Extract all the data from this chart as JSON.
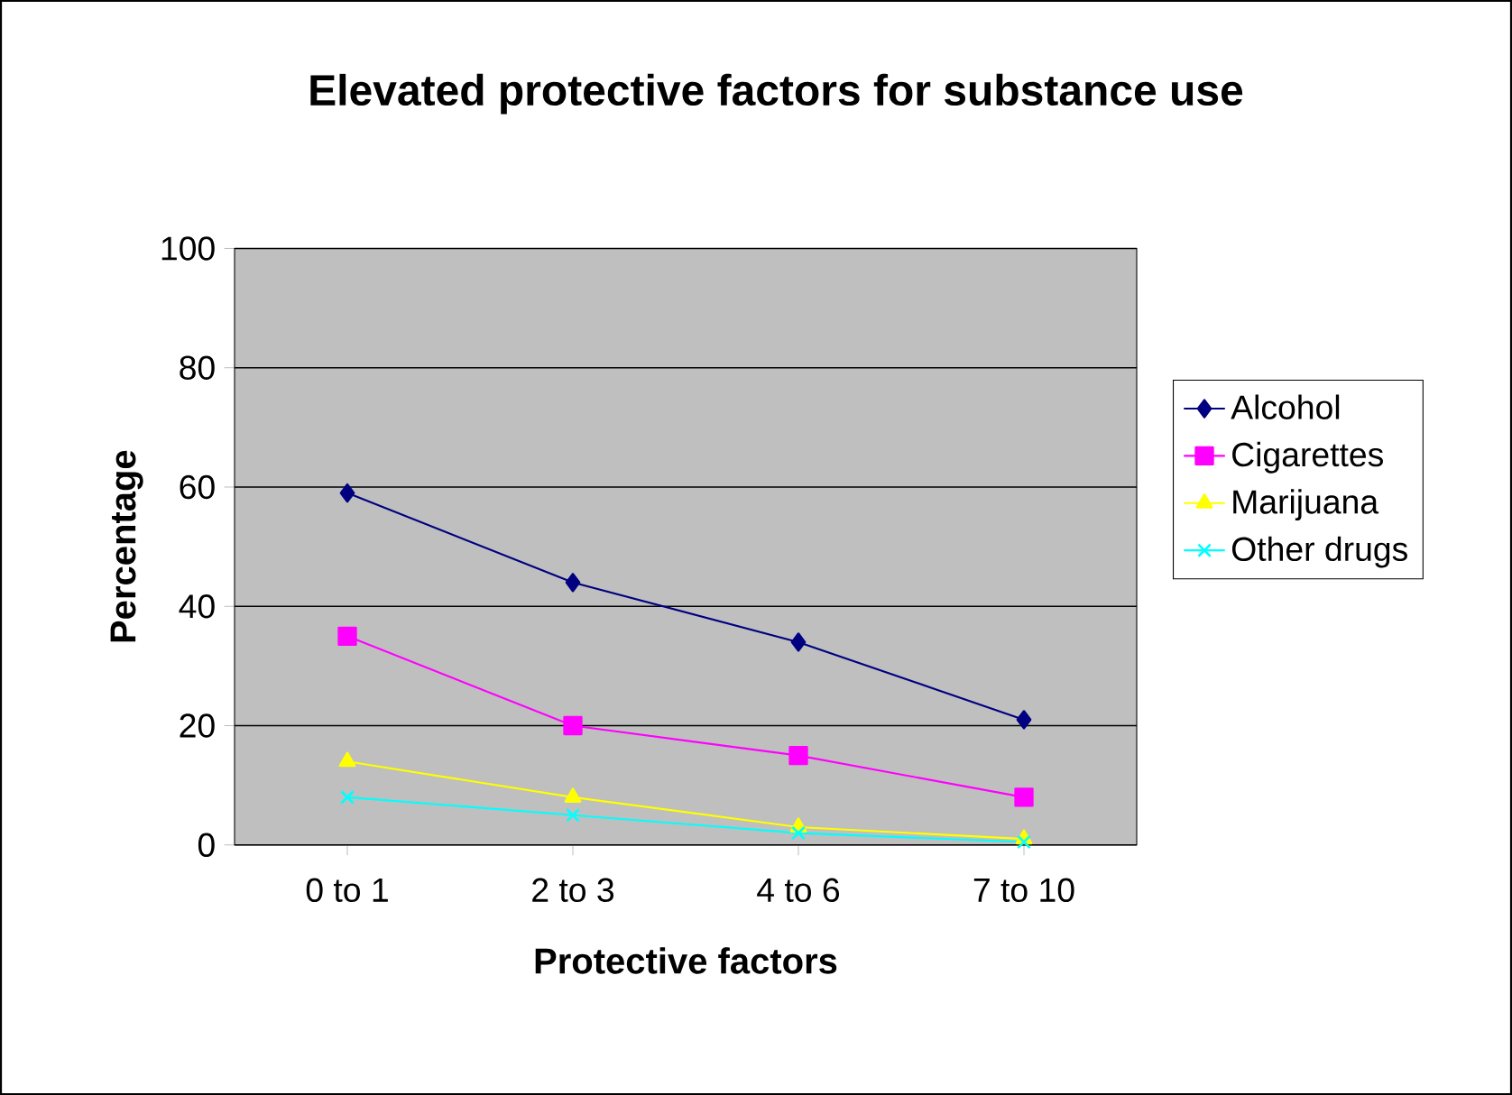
{
  "chart_data": {
    "type": "line",
    "title": "Elevated protective factors for substance use",
    "xlabel": "Protective factors",
    "ylabel": "Percentage",
    "categories": [
      "0 to 1",
      "2 to 3",
      "4 to 6",
      "7 to 10"
    ],
    "series": [
      {
        "name": "Alcohol",
        "color": "#000080",
        "marker": "diamond",
        "values": [
          59,
          44,
          34,
          21
        ]
      },
      {
        "name": "Cigarettes",
        "color": "#ff00ff",
        "marker": "square",
        "values": [
          35,
          20,
          15,
          8
        ]
      },
      {
        "name": "Marijuana",
        "color": "#ffff00",
        "marker": "triangle",
        "values": [
          14,
          8,
          3,
          1
        ]
      },
      {
        "name": "Other drugs",
        "color": "#00ffff",
        "marker": "cross",
        "values": [
          8,
          5,
          2,
          0.5
        ]
      }
    ],
    "ylim": [
      0,
      100
    ],
    "yticks": [
      0,
      20,
      40,
      60,
      80,
      100
    ],
    "grid": "y",
    "legend": "right"
  }
}
